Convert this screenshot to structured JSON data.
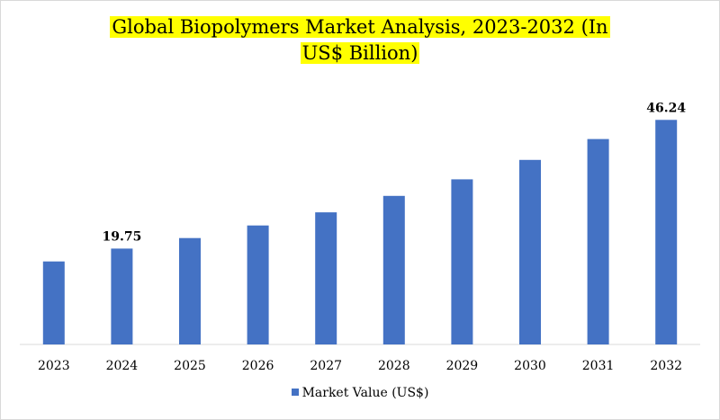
{
  "colors": {
    "bar": "#4472c4",
    "title_highlight": "#ffff00",
    "axis": "#d9d9d9"
  },
  "chart_data": {
    "type": "bar",
    "title_line1": "Global Biopolymers Market Analysis, 2023-2032 (In",
    "title_line2": "US$ Billion)",
    "xlabel": "",
    "ylabel": "",
    "categories": [
      "2023",
      "2024",
      "2025",
      "2026",
      "2027",
      "2028",
      "2029",
      "2030",
      "2031",
      "2032"
    ],
    "series": [
      {
        "name": "Market Value (US$)",
        "values": [
          17.1,
          19.75,
          21.9,
          24.5,
          27.2,
          30.6,
          34.0,
          38.0,
          42.3,
          46.24
        ]
      }
    ],
    "data_labels": [
      {
        "index": 1,
        "text": "19.75"
      },
      {
        "index": 9,
        "text": "46.24"
      }
    ],
    "ylim": [
      0,
      50
    ],
    "grid": false,
    "legend": "bottom-center"
  }
}
